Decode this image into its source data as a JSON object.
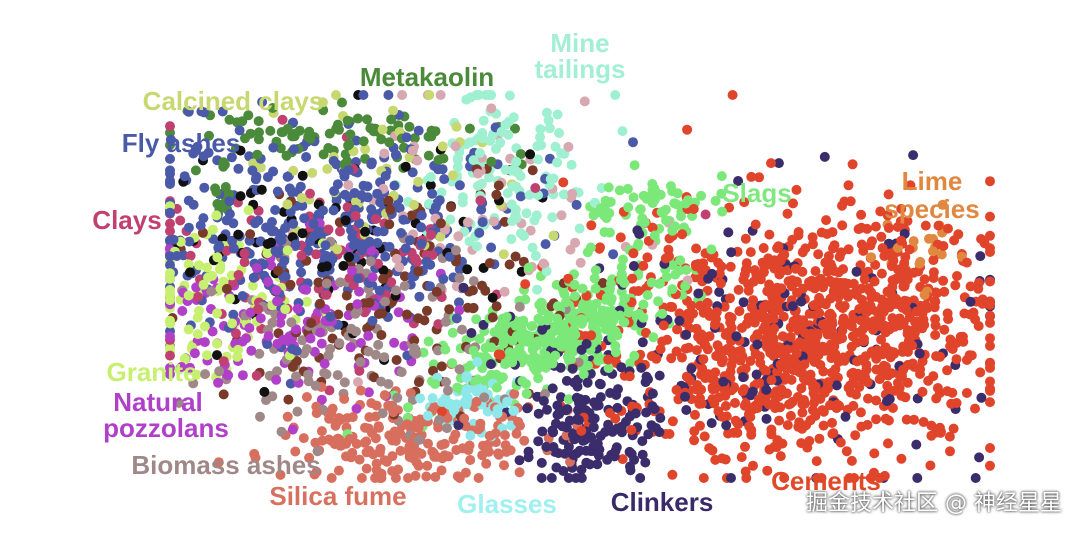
{
  "chart_data": {
    "type": "scatter",
    "title": "",
    "xlabel": "",
    "ylabel": "",
    "grid": false,
    "legend": "labels placed beside the clusters",
    "series": [
      {
        "name": "Cements",
        "color": "#e0442a"
      },
      {
        "name": "Clinkers",
        "color": "#3b2d6b"
      },
      {
        "name": "Slags",
        "color": "#7de87a"
      },
      {
        "name": "Glasses",
        "color": "#8ee8ea"
      },
      {
        "name": "Silica fume",
        "color": "#d86f5e"
      },
      {
        "name": "Fly ashes",
        "color": "#4a5aa8"
      },
      {
        "name": "Metakaolin",
        "color": "#4a8a3a"
      },
      {
        "name": "Mine tailings",
        "color": "#9ef0d0"
      },
      {
        "name": "Clays",
        "color": "#c04070"
      },
      {
        "name": "Natural pozzolans",
        "color": "#b040c8"
      },
      {
        "name": "Biomass ashes",
        "color": "#a08888"
      },
      {
        "name": "Granite",
        "color": "#c8f070"
      },
      {
        "name": "Calcined clays",
        "color": "#c8d870"
      },
      {
        "name": "Lime species",
        "color": "#e08840"
      }
    ],
    "labels": {
      "mine_1": "Mine",
      "mine_2": "tailings",
      "metakaolin": "Metakaolin",
      "calcined": "Calcined clays",
      "fly": "Fly ashes",
      "clays": "Clays",
      "slags": "Slags",
      "lime_1": "Lime",
      "lime_2": "species",
      "granite": "Granite",
      "natural_1": "Natural",
      "natural_2": "pozzolans",
      "biomass": "Biomass ashes",
      "silica": "Silica fume",
      "glasses": "Glasses",
      "clinkers": "Clinkers",
      "cements": "Cements"
    }
  },
  "watermark": "掘金技术社区 @ 神经星星"
}
